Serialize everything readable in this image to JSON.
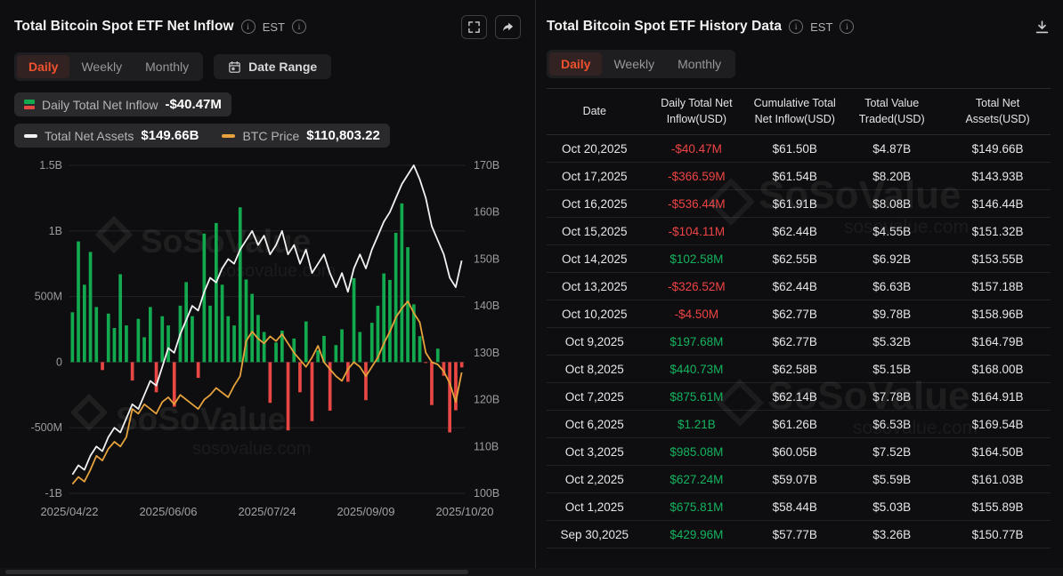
{
  "watermark": {
    "brand": "SoSoValue",
    "domain": "sosovalue.com"
  },
  "colors": {
    "accent_active_tab": "#f0512e",
    "positive_green": "#14b35f",
    "negative_red": "#ef4444",
    "net_assets_line": "#f2f2f2",
    "btc_price_line": "#e6a23c"
  },
  "left_panel": {
    "title": "Total Bitcoin Spot ETF Net Inflow",
    "est_label": "EST",
    "tabs": [
      "Daily",
      "Weekly",
      "Monthly"
    ],
    "active_tab": "Daily",
    "date_range_label": "Date Range",
    "legend": {
      "inflow_label": "Daily Total Net Inflow",
      "inflow_value": "-$40.47M",
      "net_assets_label": "Total Net Assets",
      "net_assets_value": "$149.66B",
      "btc_label": "BTC Price",
      "btc_value": "$110,803.22"
    }
  },
  "chart_data": {
    "type": "combo",
    "x_tick_labels": [
      "2025/04/22",
      "2025/06/06",
      "2025/07/24",
      "2025/09/09",
      "2025/10/20"
    ],
    "left_axis": {
      "ticks": [
        "1.5B",
        "1B",
        "500M",
        "0",
        "-500M",
        "-1B"
      ],
      "range_millions": [
        -1000,
        1500
      ]
    },
    "right_axis": {
      "ticks": [
        "170B",
        "160B",
        "150B",
        "140B",
        "130B",
        "120B",
        "110B",
        "100B"
      ],
      "range_billions": [
        100,
        170
      ]
    },
    "btc_hidden_axis_usd": [
      85000,
      155000
    ],
    "grid": true,
    "series": [
      {
        "name": "Daily Total Net Inflow",
        "type": "bar",
        "axis": "left",
        "unit": "USD millions",
        "color_positive": "#12a94f",
        "color_negative": "#e84743",
        "values": [
          380,
          920,
          590,
          840,
          420,
          -60,
          370,
          260,
          670,
          280,
          -140,
          330,
          190,
          420,
          -230,
          350,
          280,
          -340,
          430,
          610,
          350,
          -120,
          980,
          430,
          1060,
          590,
          350,
          280,
          1180,
          630,
          520,
          360,
          230,
          -310,
          150,
          240,
          -520,
          180,
          -230,
          310,
          -450,
          90,
          200,
          -370,
          130,
          250,
          -150,
          640,
          230,
          -290,
          300,
          430,
          676,
          627,
          985,
          1210,
          876,
          441,
          198,
          -5,
          -327,
          103,
          -104,
          -536,
          -367,
          -40
        ]
      },
      {
        "name": "Total Net Assets",
        "type": "line",
        "axis": "right",
        "unit": "USD billions",
        "color": "#f2f2f2",
        "values": [
          104,
          106,
          105,
          108,
          110,
          109,
          112,
          114,
          113,
          116,
          119,
          118,
          121,
          124,
          123,
          127,
          131,
          130,
          134,
          137,
          140,
          139,
          143,
          146,
          145,
          148,
          150,
          149,
          152,
          154,
          156,
          153,
          155,
          151,
          153,
          156,
          151,
          153,
          149,
          152,
          147,
          149,
          151,
          147,
          144,
          147,
          143,
          148,
          151,
          148,
          152,
          155,
          158,
          160,
          163,
          166,
          168,
          170,
          167,
          163,
          157,
          154,
          151,
          146,
          144,
          149.66
        ]
      },
      {
        "name": "BTC Price",
        "type": "line",
        "axis": "btc",
        "unit": "USD",
        "color": "#e6a23c",
        "values": [
          87000,
          88500,
          87500,
          90000,
          93000,
          92000,
          94500,
          96000,
          95000,
          97000,
          103000,
          102000,
          104000,
          103000,
          102000,
          104500,
          105500,
          104000,
          106000,
          105000,
          104000,
          103000,
          105000,
          106000,
          107500,
          106500,
          105500,
          108000,
          110000,
          117500,
          119500,
          118000,
          117000,
          118500,
          117500,
          119000,
          117000,
          115000,
          113500,
          112000,
          114000,
          116500,
          113000,
          111500,
          110000,
          109000,
          111500,
          113000,
          112000,
          110000,
          112000,
          114000,
          117000,
          119500,
          122500,
          124500,
          126000,
          123500,
          121500,
          115000,
          113000,
          112500,
          111000,
          108500,
          104500,
          110803
        ]
      }
    ]
  },
  "right_panel": {
    "title": "Total Bitcoin Spot ETF History Data",
    "est_label": "EST",
    "tabs": [
      "Daily",
      "Weekly",
      "Monthly"
    ],
    "active_tab": "Daily",
    "table": {
      "columns": [
        "Date",
        "Daily Total Net Inflow(USD)",
        "Cumulative Total Net Inflow(USD)",
        "Total Value Traded(USD)",
        "Total Net Assets(USD)"
      ],
      "rows": [
        {
          "date": "Oct 20,2025",
          "inflow": "-$40.47M",
          "cumulative": "$61.50B",
          "traded": "$4.87B",
          "assets": "$149.66B"
        },
        {
          "date": "Oct 17,2025",
          "inflow": "-$366.59M",
          "cumulative": "$61.54B",
          "traded": "$8.20B",
          "assets": "$143.93B"
        },
        {
          "date": "Oct 16,2025",
          "inflow": "-$536.44M",
          "cumulative": "$61.91B",
          "traded": "$8.08B",
          "assets": "$146.44B"
        },
        {
          "date": "Oct 15,2025",
          "inflow": "-$104.11M",
          "cumulative": "$62.44B",
          "traded": "$4.55B",
          "assets": "$151.32B"
        },
        {
          "date": "Oct 14,2025",
          "inflow": "$102.58M",
          "cumulative": "$62.55B",
          "traded": "$6.92B",
          "assets": "$153.55B"
        },
        {
          "date": "Oct 13,2025",
          "inflow": "-$326.52M",
          "cumulative": "$62.44B",
          "traded": "$6.63B",
          "assets": "$157.18B"
        },
        {
          "date": "Oct 10,2025",
          "inflow": "-$4.50M",
          "cumulative": "$62.77B",
          "traded": "$9.78B",
          "assets": "$158.96B"
        },
        {
          "date": "Oct 9,2025",
          "inflow": "$197.68M",
          "cumulative": "$62.77B",
          "traded": "$5.32B",
          "assets": "$164.79B"
        },
        {
          "date": "Oct 8,2025",
          "inflow": "$440.73M",
          "cumulative": "$62.58B",
          "traded": "$5.15B",
          "assets": "$168.00B"
        },
        {
          "date": "Oct 7,2025",
          "inflow": "$875.61M",
          "cumulative": "$62.14B",
          "traded": "$7.78B",
          "assets": "$164.91B"
        },
        {
          "date": "Oct 6,2025",
          "inflow": "$1.21B",
          "cumulative": "$61.26B",
          "traded": "$6.53B",
          "assets": "$169.54B"
        },
        {
          "date": "Oct 3,2025",
          "inflow": "$985.08M",
          "cumulative": "$60.05B",
          "traded": "$7.52B",
          "assets": "$164.50B"
        },
        {
          "date": "Oct 2,2025",
          "inflow": "$627.24M",
          "cumulative": "$59.07B",
          "traded": "$5.59B",
          "assets": "$161.03B"
        },
        {
          "date": "Oct 1,2025",
          "inflow": "$675.81M",
          "cumulative": "$58.44B",
          "traded": "$5.03B",
          "assets": "$155.89B"
        },
        {
          "date": "Sep 30,2025",
          "inflow": "$429.96M",
          "cumulative": "$57.77B",
          "traded": "$3.26B",
          "assets": "$150.77B"
        }
      ]
    }
  }
}
